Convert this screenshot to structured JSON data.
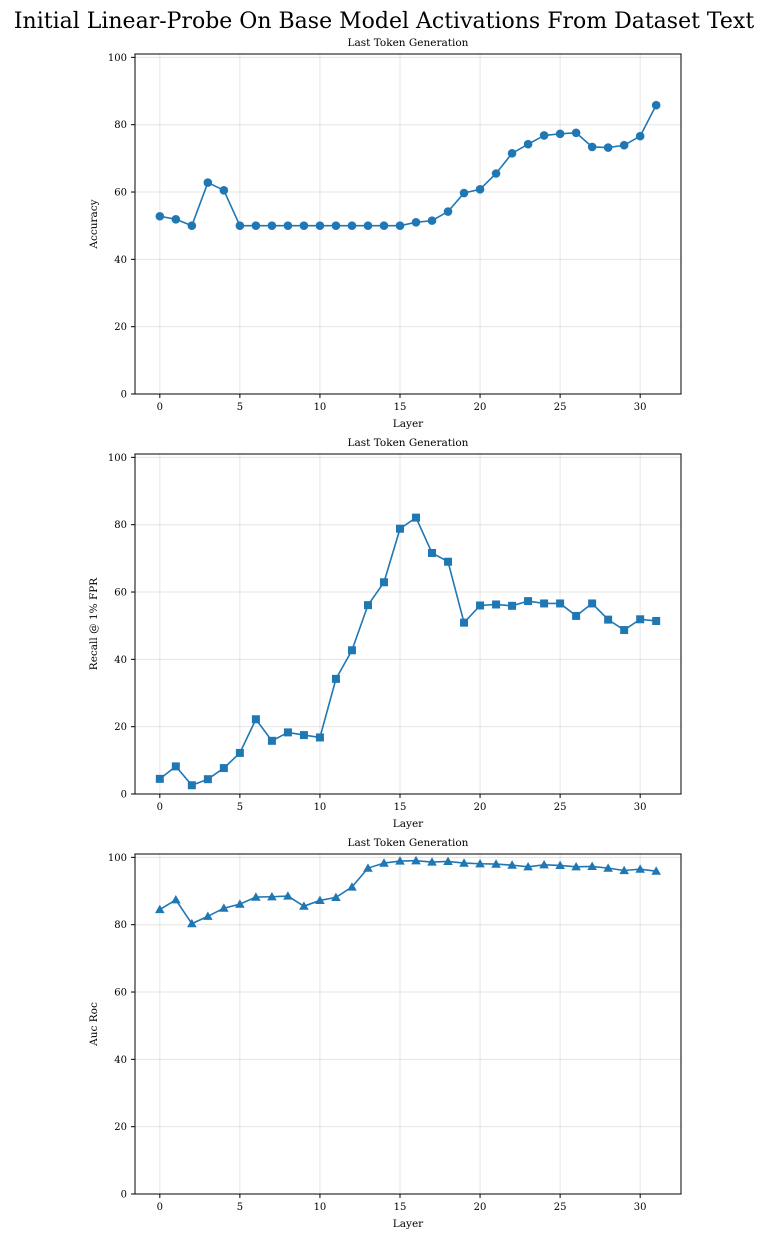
{
  "figure_title": "Initial Linear-Probe On Base Model Activations From Dataset Text",
  "series_color": "#1f77b4",
  "chart_data": [
    {
      "type": "line",
      "title": "Last Token Generation",
      "xlabel": "Layer",
      "ylabel": "Accuracy",
      "marker": "circle",
      "xlim": [
        -1.55,
        32.55
      ],
      "ylim": [
        0,
        101
      ],
      "xticks": [
        0,
        5,
        10,
        15,
        20,
        25,
        30
      ],
      "yticks": [
        0,
        20,
        40,
        60,
        80,
        100
      ],
      "grid": true,
      "x": [
        0,
        1,
        2,
        3,
        4,
        5,
        6,
        7,
        8,
        9,
        10,
        11,
        12,
        13,
        14,
        15,
        16,
        17,
        18,
        19,
        20,
        21,
        22,
        23,
        24,
        25,
        26,
        27,
        28,
        29,
        30,
        31
      ],
      "y": [
        52.8,
        51.9,
        50.0,
        62.8,
        60.5,
        50.0,
        50.0,
        50.0,
        50.0,
        50.0,
        50.0,
        50.0,
        50.0,
        50.0,
        50.0,
        50.0,
        51.0,
        51.5,
        54.2,
        59.7,
        60.8,
        65.5,
        71.5,
        74.2,
        76.8,
        77.3,
        77.6,
        73.4,
        73.2,
        73.9,
        76.6,
        85.8
      ]
    },
    {
      "type": "line",
      "title": "Last Token Generation",
      "xlabel": "Layer",
      "ylabel": "Recall @ 1% FPR",
      "marker": "square",
      "xlim": [
        -1.55,
        32.55
      ],
      "ylim": [
        0,
        101
      ],
      "xticks": [
        0,
        5,
        10,
        15,
        20,
        25,
        30
      ],
      "yticks": [
        0,
        20,
        40,
        60,
        80,
        100
      ],
      "grid": true,
      "x": [
        0,
        1,
        2,
        3,
        4,
        5,
        6,
        7,
        8,
        9,
        10,
        11,
        12,
        13,
        14,
        15,
        16,
        17,
        18,
        19,
        20,
        21,
        22,
        23,
        24,
        25,
        26,
        27,
        28,
        29,
        30,
        31
      ],
      "y": [
        4.5,
        8.2,
        2.6,
        4.4,
        7.7,
        12.2,
        22.2,
        15.8,
        18.3,
        17.5,
        16.8,
        34.2,
        42.7,
        56.1,
        62.9,
        78.8,
        82.1,
        71.6,
        69.0,
        50.9,
        56.0,
        56.3,
        55.9,
        57.3,
        56.6,
        56.6,
        52.9,
        56.6,
        51.8,
        48.7,
        51.9,
        51.4
      ]
    },
    {
      "type": "line",
      "title": "Last Token Generation",
      "xlabel": "Layer",
      "ylabel": "Auc Roc",
      "marker": "triangle",
      "xlim": [
        -1.55,
        32.55
      ],
      "ylim": [
        0,
        101
      ],
      "xticks": [
        0,
        5,
        10,
        15,
        20,
        25,
        30
      ],
      "yticks": [
        0,
        20,
        40,
        60,
        80,
        100
      ],
      "grid": true,
      "x": [
        0,
        1,
        2,
        3,
        4,
        5,
        6,
        7,
        8,
        9,
        10,
        11,
        12,
        13,
        14,
        15,
        16,
        17,
        18,
        19,
        20,
        21,
        22,
        23,
        24,
        25,
        26,
        27,
        28,
        29,
        30,
        31
      ],
      "y": [
        84.5,
        87.4,
        80.3,
        82.5,
        84.9,
        86.1,
        88.2,
        88.3,
        88.5,
        85.5,
        87.2,
        88.1,
        91.2,
        96.8,
        98.3,
        98.9,
        99.0,
        98.6,
        98.8,
        98.3,
        98.1,
        98.0,
        97.7,
        97.2,
        97.8,
        97.6,
        97.2,
        97.3,
        96.8,
        96.1,
        96.5,
        95.9
      ]
    }
  ]
}
